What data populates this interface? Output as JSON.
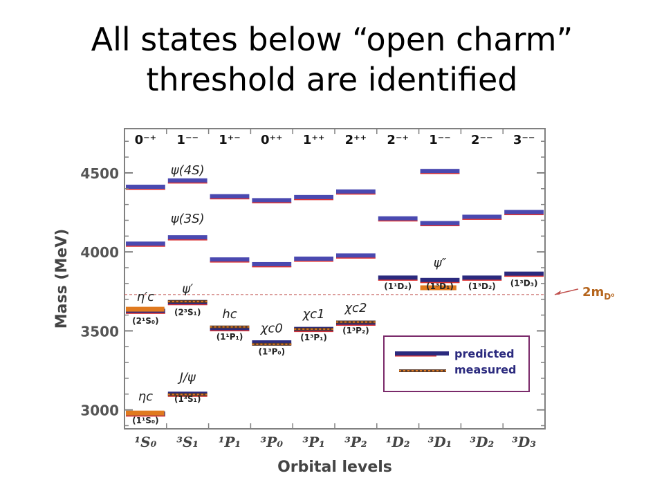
{
  "slide": {
    "title_line1": "All states below “open charm”",
    "title_line2": "threshold are identified"
  },
  "chart_data": {
    "type": "scatter",
    "xlabel": "Orbital levels",
    "ylabel": "Mass (MeV)",
    "ylim": [
      2880,
      4780
    ],
    "yticks": [
      3000,
      3500,
      4000,
      4500
    ],
    "categories": [
      "¹S₀",
      "³S₁",
      "¹P₁",
      "³P₀",
      "³P₁",
      "³P₂",
      "¹D₂",
      "³D₁",
      "³D₂",
      "³D₃"
    ],
    "jpc": [
      "0⁻⁺",
      "1⁻⁻",
      "1⁺⁻",
      "0⁺⁺",
      "1⁺⁺",
      "2⁺⁺",
      "2⁻⁺",
      "1⁻⁻",
      "2⁻⁻",
      "3⁻⁻"
    ],
    "threshold": {
      "value": 3730,
      "label": "2m",
      "label_sub": "D⁰"
    },
    "legend": {
      "position": "bottom-right",
      "predicted": "predicted",
      "measured": "measured"
    },
    "colors": {
      "predicted": "#2b2a7e",
      "predicted_bright": "#4a49b0",
      "measured": "#e07a1f",
      "axis": "#808080",
      "annotation": "#222222",
      "threshold": "#c0504d",
      "threshold_label": "#b5651d",
      "legend_border": "#7a2a6a"
    },
    "series": [
      {
        "name": "predicted",
        "points": [
          {
            "col": 0,
            "mass": 2975
          },
          {
            "col": 0,
            "mass": 3625
          },
          {
            "col": 0,
            "mass": 4050
          },
          {
            "col": 0,
            "mass": 4410
          },
          {
            "col": 1,
            "mass": 3100
          },
          {
            "col": 1,
            "mass": 3680
          },
          {
            "col": 1,
            "mass": 4090
          },
          {
            "col": 1,
            "mass": 4450
          },
          {
            "col": 2,
            "mass": 3515
          },
          {
            "col": 2,
            "mass": 3950
          },
          {
            "col": 2,
            "mass": 4350
          },
          {
            "col": 3,
            "mass": 3425
          },
          {
            "col": 3,
            "mass": 3920
          },
          {
            "col": 3,
            "mass": 4325
          },
          {
            "col": 4,
            "mass": 3510
          },
          {
            "col": 4,
            "mass": 3955
          },
          {
            "col": 4,
            "mass": 4345
          },
          {
            "col": 5,
            "mass": 3550
          },
          {
            "col": 5,
            "mass": 3975
          },
          {
            "col": 5,
            "mass": 4380
          },
          {
            "col": 6,
            "mass": 3835
          },
          {
            "col": 6,
            "mass": 4210
          },
          {
            "col": 7,
            "mass": 3820
          },
          {
            "col": 7,
            "mass": 4180
          },
          {
            "col": 7,
            "mass": 4510
          },
          {
            "col": 8,
            "mass": 3835
          },
          {
            "col": 8,
            "mass": 4220
          },
          {
            "col": 9,
            "mass": 3860
          },
          {
            "col": 9,
            "mass": 4250
          }
        ]
      },
      {
        "name": "measured",
        "points": [
          {
            "col": 0,
            "mass": 2980
          },
          {
            "col": 0,
            "mass": 3637
          },
          {
            "col": 1,
            "mass": 3097
          },
          {
            "col": 1,
            "mass": 3686
          },
          {
            "col": 2,
            "mass": 3525
          },
          {
            "col": 3,
            "mass": 3415
          },
          {
            "col": 4,
            "mass": 3511
          },
          {
            "col": 5,
            "mass": 3556
          },
          {
            "col": 7,
            "mass": 3773
          }
        ]
      }
    ],
    "annotations": [
      {
        "text": "ψ(4S)",
        "col": 1,
        "mass": 4490
      },
      {
        "text": "ψ(3S)",
        "col": 1,
        "mass": 4185
      },
      {
        "text": "η′c",
        "col": 0,
        "mass": 3690
      },
      {
        "text": "(2¹S₀)",
        "col": 0,
        "mass": 3545
      },
      {
        "text": "ψ′",
        "col": 1,
        "mass": 3740
      },
      {
        "text": "(2³S₁)",
        "col": 1,
        "mass": 3600
      },
      {
        "text": "hc",
        "col": 2,
        "mass": 3580
      },
      {
        "text": "(1¹P₁)",
        "col": 2,
        "mass": 3445
      },
      {
        "text": "χc0",
        "col": 3,
        "mass": 3490
      },
      {
        "text": "(1³P₀)",
        "col": 3,
        "mass": 3350
      },
      {
        "text": "χc1",
        "col": 4,
        "mass": 3580
      },
      {
        "text": "(1³P₁)",
        "col": 4,
        "mass": 3440
      },
      {
        "text": "χc2",
        "col": 5,
        "mass": 3620
      },
      {
        "text": "(1³P₂)",
        "col": 5,
        "mass": 3485
      },
      {
        "text": "J/ψ",
        "col": 1,
        "mass": 3180
      },
      {
        "text": "(1³S₁)",
        "col": 1,
        "mass": 3050
      },
      {
        "text": "ηc",
        "col": 0,
        "mass": 3060
      },
      {
        "text": "(1¹S₀)",
        "col": 0,
        "mass": 2915
      },
      {
        "text": "ψ″",
        "col": 7,
        "mass": 3905
      },
      {
        "text": "(1¹D₂)",
        "col": 6,
        "mass": 3765
      },
      {
        "text": "(1³D₁)",
        "col": 7,
        "mass": 3765
      },
      {
        "text": "(1³D₂)",
        "col": 8,
        "mass": 3765
      },
      {
        "text": "(1³D₃)",
        "col": 9,
        "mass": 3785
      }
    ]
  }
}
